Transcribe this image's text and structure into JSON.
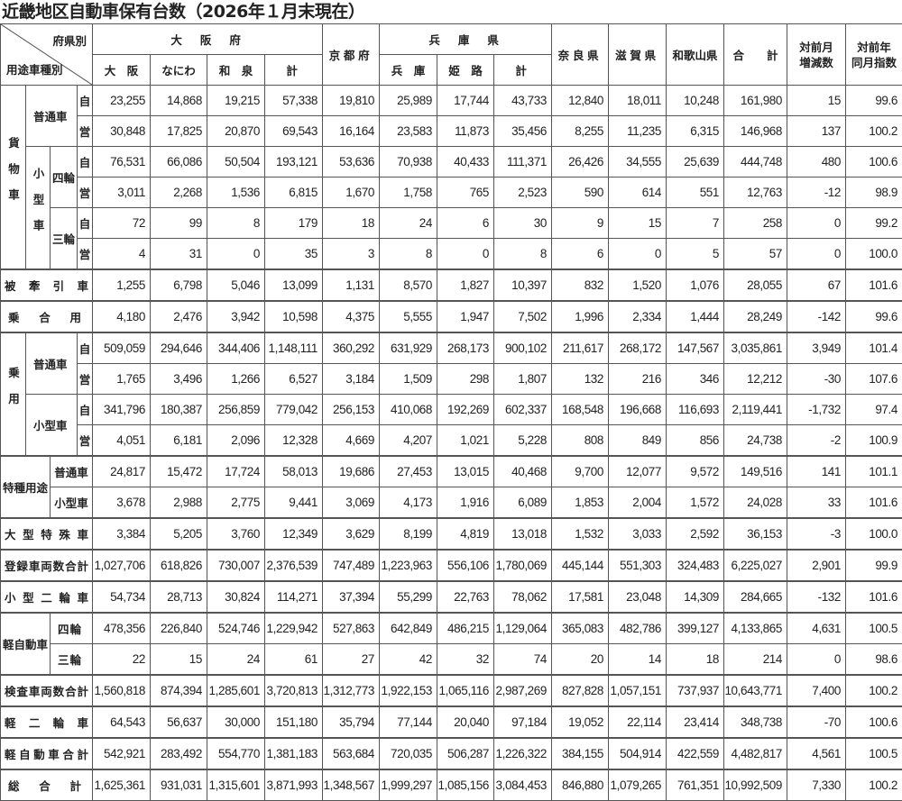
{
  "title": "近畿地区自動車保有台数（2026年１月末現在）",
  "header": {
    "corner_top": "府県別",
    "corner_bottom": "用途車種別",
    "osaka": "大　阪　府",
    "osaka_sub": [
      "大　阪",
      "なにわ",
      "和　泉",
      "計"
    ],
    "kyoto": "京都府",
    "hyogo": "兵　庫　県",
    "hyogo_sub": [
      "兵　庫",
      "姫　路",
      "計"
    ],
    "nara": "奈良県",
    "shiga": "滋賀県",
    "wakayama": "和歌山県",
    "total": "合　　計",
    "mom": "対前月\n増減数",
    "yoy": "対前年\n同月指数"
  },
  "rows": [
    {
      "labels": [
        "貨物車",
        "普通車",
        "自"
      ],
      "values": [
        "23,255",
        "14,868",
        "19,215",
        "57,338",
        "19,810",
        "25,989",
        "17,744",
        "43,733",
        "12,840",
        "18,011",
        "10,248",
        "161,980",
        "15",
        "99.6"
      ]
    },
    {
      "labels": [
        "営"
      ],
      "values": [
        "30,848",
        "17,825",
        "20,870",
        "69,543",
        "16,164",
        "23,583",
        "11,873",
        "35,456",
        "8,255",
        "11,235",
        "6,315",
        "146,968",
        "137",
        "100.2"
      ]
    },
    {
      "labels": [
        "小型車",
        "四輪",
        "自"
      ],
      "values": [
        "76,531",
        "66,086",
        "50,504",
        "193,121",
        "53,636",
        "70,938",
        "40,433",
        "111,371",
        "26,426",
        "34,555",
        "25,639",
        "444,748",
        "480",
        "100.6"
      ]
    },
    {
      "labels": [
        "営"
      ],
      "values": [
        "3,011",
        "2,268",
        "1,536",
        "6,815",
        "1,670",
        "1,758",
        "765",
        "2,523",
        "590",
        "614",
        "551",
        "12,763",
        "-12",
        "98.9"
      ]
    },
    {
      "labels": [
        "三輪",
        "自"
      ],
      "values": [
        "72",
        "99",
        "8",
        "179",
        "18",
        "24",
        "6",
        "30",
        "9",
        "15",
        "7",
        "258",
        "0",
        "99.2"
      ]
    },
    {
      "labels": [
        "営"
      ],
      "values": [
        "4",
        "31",
        "0",
        "35",
        "3",
        "8",
        "0",
        "8",
        "6",
        "0",
        "5",
        "57",
        "0",
        "100.0"
      ]
    },
    {
      "labels": [
        "被牽引車"
      ],
      "values": [
        "1,255",
        "6,798",
        "5,046",
        "13,099",
        "1,131",
        "8,570",
        "1,827",
        "10,397",
        "832",
        "1,520",
        "1,076",
        "28,055",
        "67",
        "101.6"
      ]
    },
    {
      "labels": [
        "乗合用"
      ],
      "values": [
        "4,180",
        "2,476",
        "3,942",
        "10,598",
        "4,375",
        "5,555",
        "1,947",
        "7,502",
        "1,996",
        "2,334",
        "1,444",
        "28,249",
        "-142",
        "99.6"
      ]
    },
    {
      "labels": [
        "乗用",
        "普通車",
        "自"
      ],
      "values": [
        "509,059",
        "294,646",
        "344,406",
        "1,148,111",
        "360,292",
        "631,929",
        "268,173",
        "900,102",
        "211,617",
        "268,172",
        "147,567",
        "3,035,861",
        "3,949",
        "101.4"
      ]
    },
    {
      "labels": [
        "営"
      ],
      "values": [
        "1,765",
        "3,496",
        "1,266",
        "6,527",
        "3,184",
        "1,509",
        "298",
        "1,807",
        "132",
        "216",
        "346",
        "12,212",
        "-30",
        "107.6"
      ]
    },
    {
      "labels": [
        "小型車",
        "自"
      ],
      "values": [
        "341,796",
        "180,387",
        "256,859",
        "779,042",
        "256,153",
        "410,068",
        "192,269",
        "602,337",
        "168,548",
        "196,668",
        "116,693",
        "2,119,441",
        "-1,732",
        "97.4"
      ]
    },
    {
      "labels": [
        "営"
      ],
      "values": [
        "4,051",
        "6,181",
        "2,096",
        "12,328",
        "4,669",
        "4,207",
        "1,021",
        "5,228",
        "808",
        "849",
        "856",
        "24,738",
        "-2",
        "100.9"
      ]
    },
    {
      "labels": [
        "特種用途",
        "普通車"
      ],
      "values": [
        "24,817",
        "15,472",
        "17,724",
        "58,013",
        "19,686",
        "27,453",
        "13,015",
        "40,468",
        "9,700",
        "12,077",
        "9,572",
        "149,516",
        "141",
        "101.1"
      ]
    },
    {
      "labels": [
        "小型車"
      ],
      "values": [
        "3,678",
        "2,988",
        "2,775",
        "9,441",
        "3,069",
        "4,173",
        "1,916",
        "6,089",
        "1,853",
        "2,004",
        "1,572",
        "24,028",
        "33",
        "101.6"
      ]
    },
    {
      "labels": [
        "大型特殊車"
      ],
      "values": [
        "3,384",
        "5,205",
        "3,760",
        "12,349",
        "3,629",
        "8,199",
        "4,819",
        "13,018",
        "1,532",
        "3,033",
        "2,592",
        "36,153",
        "-3",
        "100.0"
      ]
    },
    {
      "labels": [
        "登録車両数合計"
      ],
      "values": [
        "1,027,706",
        "618,826",
        "730,007",
        "2,376,539",
        "747,489",
        "1,223,963",
        "556,106",
        "1,780,069",
        "445,144",
        "551,303",
        "324,483",
        "6,225,027",
        "2,901",
        "99.9"
      ]
    },
    {
      "labels": [
        "小型二輪車"
      ],
      "values": [
        "54,734",
        "28,713",
        "30,824",
        "114,271",
        "37,394",
        "55,299",
        "22,763",
        "78,062",
        "17,581",
        "23,048",
        "14,309",
        "284,665",
        "-132",
        "101.6"
      ]
    },
    {
      "labels": [
        "軽自動車",
        "四輪"
      ],
      "values": [
        "478,356",
        "226,840",
        "524,746",
        "1,229,942",
        "527,863",
        "642,849",
        "486,215",
        "1,129,064",
        "365,083",
        "482,786",
        "399,127",
        "4,133,865",
        "4,631",
        "100.5"
      ]
    },
    {
      "labels": [
        "三輪"
      ],
      "values": [
        "22",
        "15",
        "24",
        "61",
        "27",
        "42",
        "32",
        "74",
        "20",
        "14",
        "18",
        "214",
        "0",
        "98.6"
      ]
    },
    {
      "labels": [
        "検査車両数合計"
      ],
      "values": [
        "1,560,818",
        "874,394",
        "1,285,601",
        "3,720,813",
        "1,312,773",
        "1,922,153",
        "1,065,116",
        "2,987,269",
        "827,828",
        "1,057,151",
        "737,937",
        "10,643,771",
        "7,400",
        "100.2"
      ]
    },
    {
      "labels": [
        "軽二輪車"
      ],
      "values": [
        "64,543",
        "56,637",
        "30,000",
        "151,180",
        "35,794",
        "77,144",
        "20,040",
        "97,184",
        "19,052",
        "22,114",
        "23,414",
        "348,738",
        "-70",
        "100.6"
      ]
    },
    {
      "labels": [
        "軽自動車合計"
      ],
      "values": [
        "542,921",
        "283,492",
        "554,770",
        "1,381,183",
        "563,684",
        "720,035",
        "506,287",
        "1,226,322",
        "384,155",
        "504,914",
        "422,559",
        "4,482,817",
        "4,561",
        "100.5"
      ]
    },
    {
      "labels": [
        "総合計"
      ],
      "values": [
        "1,625,361",
        "931,031",
        "1,315,601",
        "3,871,993",
        "1,348,567",
        "1,999,297",
        "1,085,156",
        "3,084,453",
        "846,880",
        "1,079,265",
        "761,351",
        "10,992,509",
        "7,330",
        "100.2"
      ]
    }
  ]
}
